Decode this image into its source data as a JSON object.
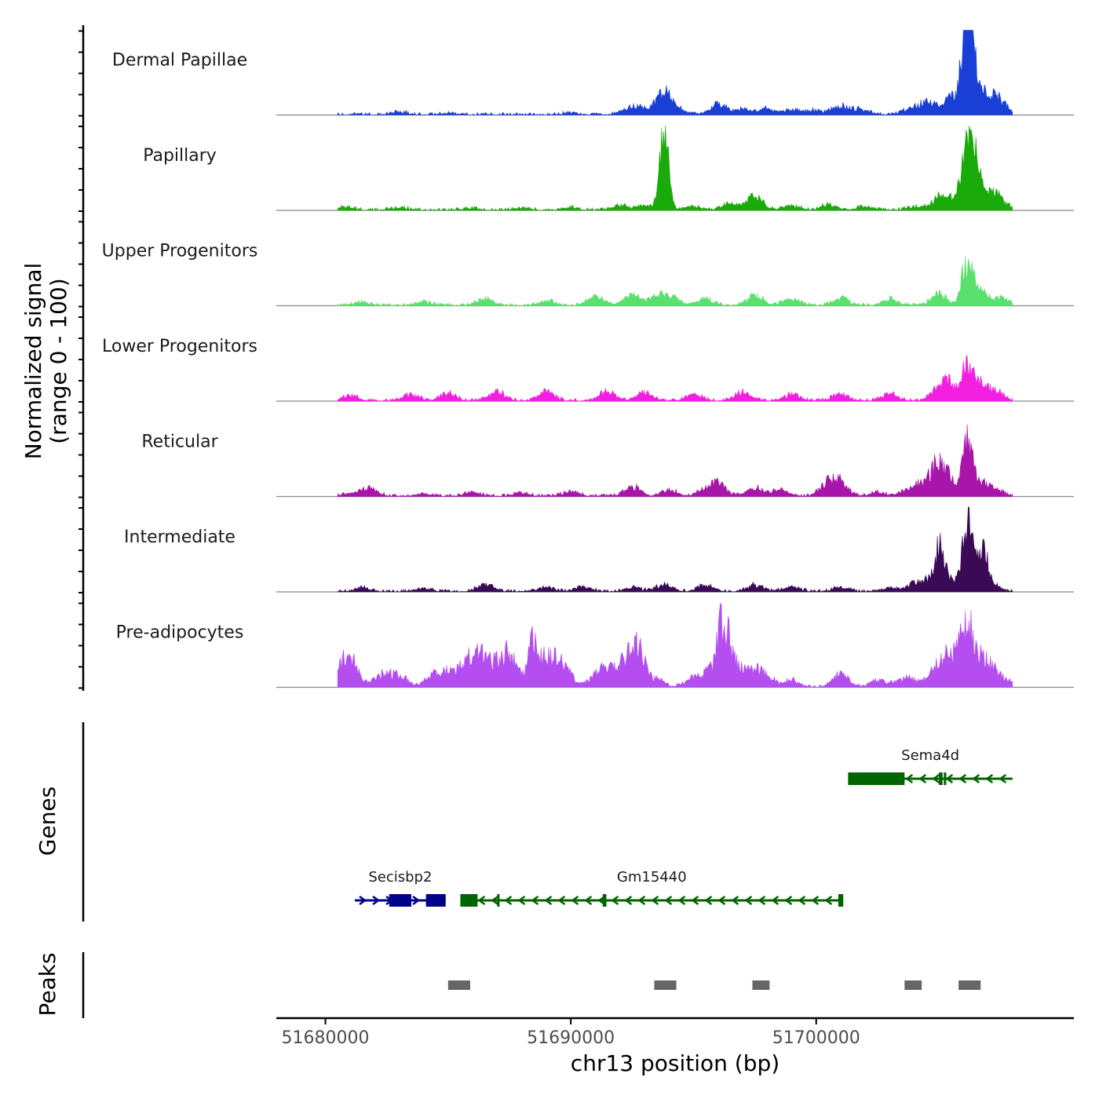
{
  "chart_data": {
    "type": "area",
    "title": "",
    "ylabel_line1": "Normalized signal",
    "ylabel_line2": "(range 0 - 100)",
    "xlabel": "chr13 position (bp)",
    "xlim": [
      51678000,
      51710500
    ],
    "x_ticks": [
      51680000,
      51690000,
      51700000
    ],
    "x_tick_labels": [
      "51680000",
      "51690000",
      "51700000"
    ],
    "signal_range": [
      0,
      100
    ],
    "signal_x_start": 51680500,
    "signal_x_end": 51708000,
    "tracks": [
      {
        "name": "Dermal Papillae",
        "color": "#1a3fd6",
        "peaks": [
          [
            51683000,
            3
          ],
          [
            51685000,
            2
          ],
          [
            51690000,
            2
          ],
          [
            51692300,
            6
          ],
          [
            51692800,
            8
          ],
          [
            51693800,
            30
          ],
          [
            51694600,
            4
          ],
          [
            51696000,
            14
          ],
          [
            51697000,
            7
          ],
          [
            51698000,
            8
          ],
          [
            51699000,
            6
          ],
          [
            51700000,
            5
          ],
          [
            51701000,
            10
          ],
          [
            51701800,
            8
          ],
          [
            51703800,
            7
          ],
          [
            51704500,
            16
          ],
          [
            51705500,
            22
          ],
          [
            51706100,
            100
          ],
          [
            51706300,
            95
          ],
          [
            51706800,
            25
          ],
          [
            51707400,
            20
          ]
        ]
      },
      {
        "name": "Papillary",
        "color": "#1aaa0a",
        "peaks": [
          [
            51680800,
            4
          ],
          [
            51683000,
            3
          ],
          [
            51686000,
            2
          ],
          [
            51688000,
            3
          ],
          [
            51690000,
            3
          ],
          [
            51692000,
            5
          ],
          [
            51693000,
            6
          ],
          [
            51693800,
            95
          ],
          [
            51695000,
            5
          ],
          [
            51696500,
            8
          ],
          [
            51697500,
            17
          ],
          [
            51699000,
            5
          ],
          [
            51700500,
            6
          ],
          [
            51702000,
            5
          ],
          [
            51704000,
            4
          ],
          [
            51705000,
            15
          ],
          [
            51705800,
            18
          ],
          [
            51706150,
            72
          ],
          [
            51706500,
            50
          ],
          [
            51707000,
            22
          ],
          [
            51707500,
            10
          ]
        ]
      },
      {
        "name": "Upper Progenitors",
        "color": "#5ae06e",
        "peaks": [
          [
            51681500,
            4
          ],
          [
            51684000,
            4
          ],
          [
            51686500,
            8
          ],
          [
            51689000,
            6
          ],
          [
            51691000,
            12
          ],
          [
            51692500,
            14
          ],
          [
            51693500,
            12
          ],
          [
            51694100,
            10
          ],
          [
            51695500,
            8
          ],
          [
            51697500,
            12
          ],
          [
            51699000,
            8
          ],
          [
            51701000,
            9
          ],
          [
            51703000,
            8
          ],
          [
            51705000,
            14
          ],
          [
            51706100,
            42
          ],
          [
            51706500,
            30
          ],
          [
            51707500,
            10
          ]
        ]
      },
      {
        "name": "Lower Progenitors",
        "color": "#f21fe0",
        "peaks": [
          [
            51681000,
            7
          ],
          [
            51683500,
            8
          ],
          [
            51685000,
            10
          ],
          [
            51687000,
            11
          ],
          [
            51689000,
            12
          ],
          [
            51691500,
            12
          ],
          [
            51693000,
            10
          ],
          [
            51695000,
            9
          ],
          [
            51697000,
            10
          ],
          [
            51699000,
            8
          ],
          [
            51701000,
            8
          ],
          [
            51703000,
            9
          ],
          [
            51705000,
            16
          ],
          [
            51705500,
            18
          ],
          [
            51706150,
            42
          ],
          [
            51706600,
            22
          ],
          [
            51707300,
            12
          ]
        ]
      },
      {
        "name": "Reticular",
        "color": "#a914a9",
        "peaks": [
          [
            51681000,
            3
          ],
          [
            51681800,
            10
          ],
          [
            51684000,
            3
          ],
          [
            51686000,
            5
          ],
          [
            51688000,
            4
          ],
          [
            51690000,
            6
          ],
          [
            51692500,
            12
          ],
          [
            51694000,
            8
          ],
          [
            51695500,
            8
          ],
          [
            51696000,
            15
          ],
          [
            51697500,
            10
          ],
          [
            51698500,
            8
          ],
          [
            51700500,
            17
          ],
          [
            51701000,
            14
          ],
          [
            51702500,
            4
          ],
          [
            51703800,
            10
          ],
          [
            51704500,
            14
          ],
          [
            51705000,
            35
          ],
          [
            51705500,
            14
          ],
          [
            51706150,
            62
          ],
          [
            51706500,
            20
          ],
          [
            51707200,
            10
          ]
        ]
      },
      {
        "name": "Intermediate",
        "color": "#3b0a57",
        "peaks": [
          [
            51681500,
            4
          ],
          [
            51684000,
            4
          ],
          [
            51686500,
            9
          ],
          [
            51689000,
            5
          ],
          [
            51690500,
            6
          ],
          [
            51692500,
            5
          ],
          [
            51693800,
            9
          ],
          [
            51695500,
            8
          ],
          [
            51697500,
            8
          ],
          [
            51699000,
            6
          ],
          [
            51701000,
            5
          ],
          [
            51703000,
            4
          ],
          [
            51704000,
            10
          ],
          [
            51704700,
            16
          ],
          [
            51705050,
            48
          ],
          [
            51705500,
            12
          ],
          [
            51706150,
            78
          ],
          [
            51706500,
            30
          ],
          [
            51706800,
            42
          ],
          [
            51707300,
            6
          ]
        ]
      },
      {
        "name": "Pre-adipocytes",
        "color": "#b44ef0",
        "peaks": [
          [
            51680700,
            16
          ],
          [
            51681000,
            31
          ],
          [
            51682300,
            16
          ],
          [
            51683000,
            14
          ],
          [
            51684300,
            10
          ],
          [
            51684800,
            16
          ],
          [
            51685500,
            16
          ],
          [
            51686000,
            31
          ],
          [
            51686500,
            24
          ],
          [
            51687000,
            16
          ],
          [
            51687500,
            40
          ],
          [
            51688400,
            42
          ],
          [
            51688800,
            28
          ],
          [
            51689300,
            20
          ],
          [
            51689700,
            24
          ],
          [
            51691000,
            12
          ],
          [
            51691500,
            16
          ],
          [
            51692000,
            14
          ],
          [
            51692500,
            24
          ],
          [
            51692700,
            36
          ],
          [
            51693500,
            8
          ],
          [
            51695000,
            12
          ],
          [
            51695800,
            22
          ],
          [
            51696200,
            50
          ],
          [
            51696400,
            38
          ],
          [
            51697000,
            14
          ],
          [
            51697500,
            16
          ],
          [
            51698000,
            12
          ],
          [
            51699000,
            8
          ],
          [
            51701000,
            16
          ],
          [
            51702500,
            8
          ],
          [
            51703500,
            8
          ],
          [
            51704000,
            8
          ],
          [
            51705000,
            30
          ],
          [
            51705600,
            34
          ],
          [
            51706000,
            52
          ],
          [
            51706300,
            44
          ],
          [
            51706700,
            30
          ],
          [
            51707200,
            20
          ],
          [
            51707800,
            6
          ]
        ]
      }
    ],
    "genes": {
      "label": "Genes",
      "items": [
        {
          "name": "Sema4d",
          "strand": "-",
          "color": "#006400",
          "start": 51701300,
          "end": 51708000,
          "row": 1,
          "exons": [
            [
              51701300,
              51703600
            ],
            [
              51705000,
              51705150
            ],
            [
              51705200,
              51705300
            ]
          ]
        },
        {
          "name": "Secisbp2",
          "strand": "+",
          "color": "#00008b",
          "start": 51681200,
          "end": 51684900,
          "row": 2,
          "exons": [
            [
              51682600,
              51683500
            ],
            [
              51684100,
              51684900
            ]
          ]
        },
        {
          "name": "Gm15440",
          "strand": "-",
          "color": "#006400",
          "start": 51685500,
          "end": 51701100,
          "row": 2,
          "exons": [
            [
              51685500,
              51686200
            ],
            [
              51687000,
              51687060
            ],
            [
              51691300,
              51691450
            ],
            [
              51700900,
              51701100
            ]
          ]
        }
      ]
    },
    "peaks": {
      "label": "Peaks",
      "color": "#666666",
      "regions": [
        [
          51685000,
          51685900
        ],
        [
          51693400,
          51694300
        ],
        [
          51697400,
          51698100
        ],
        [
          51703600,
          51704300
        ],
        [
          51705800,
          51706700
        ]
      ]
    }
  }
}
